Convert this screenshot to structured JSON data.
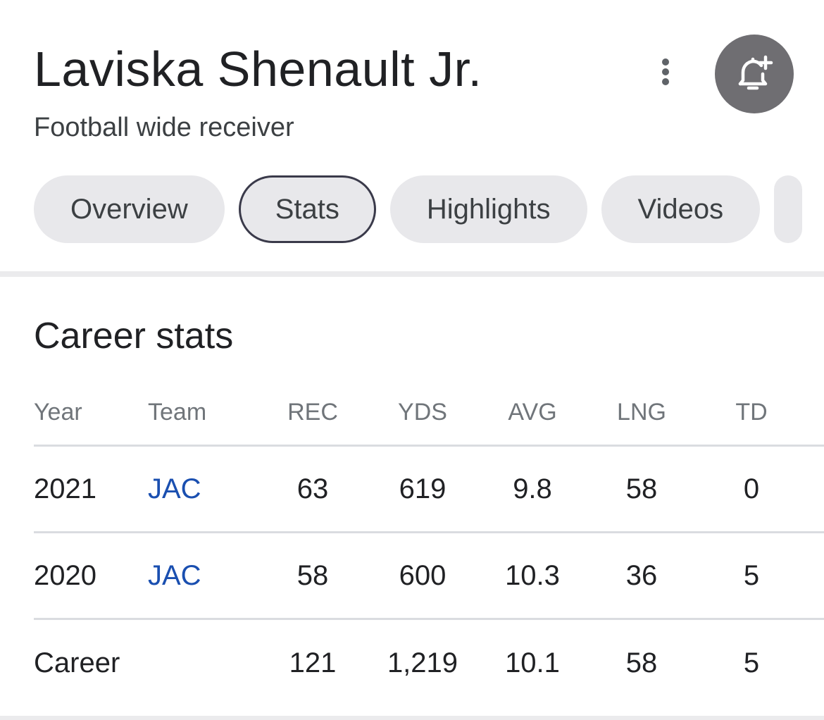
{
  "player": {
    "name": "Laviska Shenault Jr.",
    "position": "Football wide receiver"
  },
  "tabs": [
    {
      "label": "Overview",
      "active": false
    },
    {
      "label": "Stats",
      "active": true
    },
    {
      "label": "Highlights",
      "active": false
    },
    {
      "label": "Videos",
      "active": false
    }
  ],
  "section": {
    "title": "Career stats"
  },
  "table": {
    "headers": [
      "Year",
      "Team",
      "REC",
      "YDS",
      "AVG",
      "LNG",
      "TD"
    ],
    "rows": [
      [
        "2021",
        "JAC",
        "63",
        "619",
        "9.8",
        "58",
        "0"
      ],
      [
        "2020",
        "JAC",
        "58",
        "600",
        "10.3",
        "36",
        "5"
      ],
      [
        "Career",
        "",
        "121",
        "1,219",
        "10.1",
        "58",
        "5"
      ]
    ]
  },
  "icons": {
    "more": "more-vertical-icon",
    "follow": "bell-plus-icon"
  },
  "colors": {
    "link": "#1a4fb0",
    "chip_bg": "#e8e8eb",
    "follow_bg": "#6f6e72"
  }
}
